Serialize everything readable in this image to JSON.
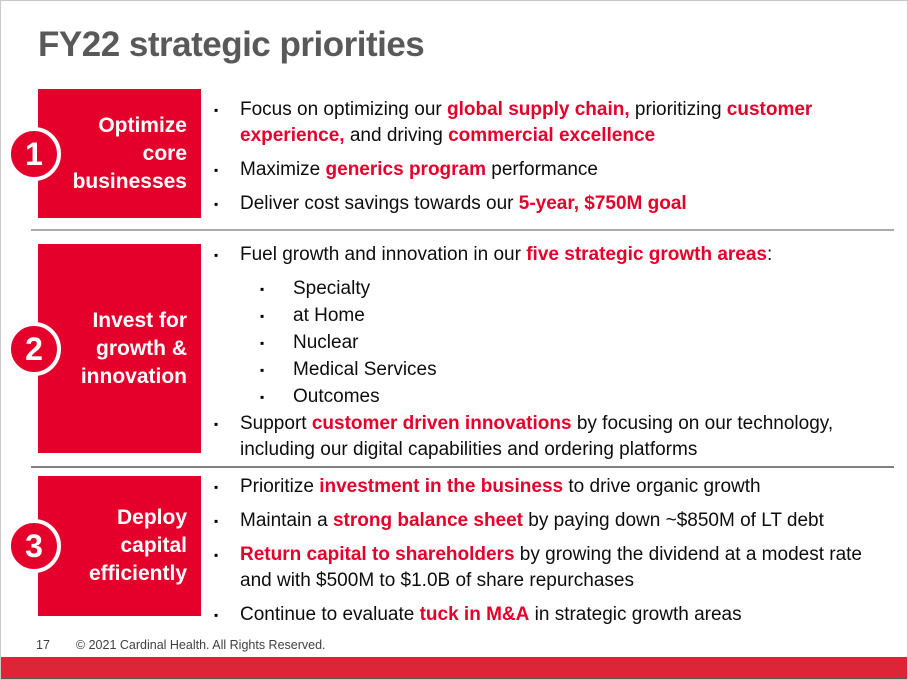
{
  "title": "FY22 strategic priorities",
  "colors": {
    "brand_red": "#E4002B",
    "bottom_bar_red": "#DC2638",
    "title_gray": "#595959"
  },
  "footer": {
    "page_number": "17",
    "copyright": "© 2021 Cardinal Health. All Rights Reserved."
  },
  "sections": [
    {
      "number": "1",
      "label_lines": [
        "Optimize",
        "core",
        "businesses"
      ],
      "bullets": [
        {
          "level": 1,
          "runs": [
            {
              "text": "Focus on optimizing our ",
              "red": false
            },
            {
              "text": "global supply chain,",
              "red": true
            },
            {
              "text": " prioritizing ",
              "red": false
            },
            {
              "text": "customer experience,",
              "red": true
            },
            {
              "text": " and driving ",
              "red": false
            },
            {
              "text": "commercial excellence",
              "red": true
            }
          ]
        },
        {
          "level": 1,
          "runs": [
            {
              "text": "Maximize ",
              "red": false
            },
            {
              "text": "generics program",
              "red": true
            },
            {
              "text": " performance",
              "red": false
            }
          ]
        },
        {
          "level": 1,
          "runs": [
            {
              "text": "Deliver cost savings towards our ",
              "red": false
            },
            {
              "text": "5-year, $750M goal",
              "red": true
            }
          ]
        }
      ]
    },
    {
      "number": "2",
      "label_lines": [
        "Invest for",
        "growth &",
        "innovation"
      ],
      "bullets": [
        {
          "level": 1,
          "runs": [
            {
              "text": "Fuel growth and innovation in our ",
              "red": false
            },
            {
              "text": "five strategic growth areas",
              "red": true
            },
            {
              "text": ":",
              "red": false
            }
          ]
        },
        {
          "level": 2,
          "runs": [
            {
              "text": "Specialty",
              "red": false
            }
          ]
        },
        {
          "level": 2,
          "runs": [
            {
              "text": "at Home",
              "red": false
            }
          ]
        },
        {
          "level": 2,
          "runs": [
            {
              "text": "Nuclear",
              "red": false
            }
          ]
        },
        {
          "level": 2,
          "runs": [
            {
              "text": "Medical Services",
              "red": false
            }
          ]
        },
        {
          "level": 2,
          "runs": [
            {
              "text": "Outcomes",
              "red": false
            }
          ]
        },
        {
          "level": 1,
          "runs": [
            {
              "text": "Support ",
              "red": false
            },
            {
              "text": "customer driven innovations",
              "red": true
            },
            {
              "text": " by focusing on our technology, including our digital capabilities and ordering platforms",
              "red": false
            }
          ]
        }
      ]
    },
    {
      "number": "3",
      "label_lines": [
        "Deploy",
        "capital",
        "efficiently"
      ],
      "bullets": [
        {
          "level": 1,
          "runs": [
            {
              "text": "Prioritize ",
              "red": false
            },
            {
              "text": "investment in the business",
              "red": true
            },
            {
              "text": " to drive organic growth",
              "red": false
            }
          ]
        },
        {
          "level": 1,
          "runs": [
            {
              "text": "Maintain a ",
              "red": false
            },
            {
              "text": "strong balance sheet",
              "red": true
            },
            {
              "text": " by paying down ~$850M of LT debt",
              "red": false
            }
          ]
        },
        {
          "level": 1,
          "runs": [
            {
              "text": "Return capital to shareholders",
              "red": true
            },
            {
              "text": " by growing the dividend at a modest rate and with $500M to $1.0B of share repurchases",
              "red": false
            }
          ]
        },
        {
          "level": 1,
          "runs": [
            {
              "text": "Continue to evaluate ",
              "red": false
            },
            {
              "text": "tuck in M&A",
              "red": true
            },
            {
              "text": " in strategic growth areas",
              "red": false
            }
          ]
        }
      ]
    }
  ]
}
